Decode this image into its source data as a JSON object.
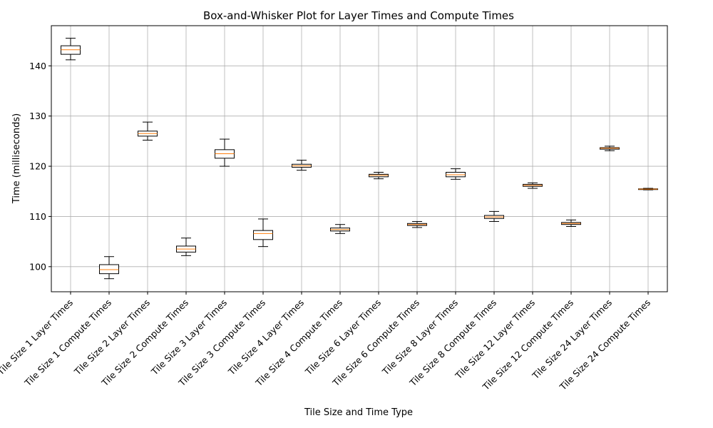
{
  "chart_data": {
    "type": "box",
    "title": "Box-and-Whisker Plot for Layer Times and Compute Times",
    "xlabel": "Tile Size and Time Type",
    "ylabel": "Time (milliseconds)",
    "ylim": [
      95,
      148
    ],
    "yticks": [
      100,
      110,
      120,
      130,
      140
    ],
    "grid": true,
    "colors": {
      "box": "#000000",
      "median": "#ff7f0e",
      "grid": "#b0b0b0"
    },
    "categories": [
      "Tile Size 1 Layer Times",
      "Tile Size 1 Compute Times",
      "Tile Size 2 Layer Times",
      "Tile Size 2 Compute Times",
      "Tile Size 3 Layer Times",
      "Tile Size 3 Compute Times",
      "Tile Size 4 Layer Times",
      "Tile Size 4 Compute Times",
      "Tile Size 6 Layer Times",
      "Tile Size 6 Compute Times",
      "Tile Size 8 Layer Times",
      "Tile Size 8 Compute Times",
      "Tile Size 12 Layer Times",
      "Tile Size 12 Compute Times",
      "Tile Size 24 Layer Times",
      "Tile Size 24 Compute Times"
    ],
    "boxes": [
      {
        "min": 141.2,
        "q1": 142.3,
        "median": 143.2,
        "q3": 144.0,
        "max": 145.5
      },
      {
        "min": 97.6,
        "q1": 98.6,
        "median": 99.4,
        "q3": 100.4,
        "max": 102.0
      },
      {
        "min": 125.2,
        "q1": 126.0,
        "median": 126.5,
        "q3": 127.0,
        "max": 128.8
      },
      {
        "min": 102.2,
        "q1": 102.9,
        "median": 103.5,
        "q3": 104.1,
        "max": 105.7
      },
      {
        "min": 120.0,
        "q1": 121.6,
        "median": 122.5,
        "q3": 123.3,
        "max": 125.4
      },
      {
        "min": 104.0,
        "q1": 105.4,
        "median": 106.6,
        "q3": 107.2,
        "max": 109.5
      },
      {
        "min": 119.2,
        "q1": 119.8,
        "median": 120.1,
        "q3": 120.4,
        "max": 121.2
      },
      {
        "min": 106.6,
        "q1": 107.1,
        "median": 107.4,
        "q3": 107.7,
        "max": 108.4
      },
      {
        "min": 117.5,
        "q1": 117.9,
        "median": 118.2,
        "q3": 118.4,
        "max": 118.8
      },
      {
        "min": 107.8,
        "q1": 108.2,
        "median": 108.4,
        "q3": 108.6,
        "max": 109.0
      },
      {
        "min": 117.4,
        "q1": 117.9,
        "median": 118.3,
        "q3": 118.8,
        "max": 119.5
      },
      {
        "min": 109.0,
        "q1": 109.6,
        "median": 109.9,
        "q3": 110.2,
        "max": 111.0
      },
      {
        "min": 115.6,
        "q1": 116.0,
        "median": 116.2,
        "q3": 116.4,
        "max": 116.7
      },
      {
        "min": 108.0,
        "q1": 108.4,
        "median": 108.6,
        "q3": 108.8,
        "max": 109.3
      },
      {
        "min": 123.1,
        "q1": 123.4,
        "median": 123.6,
        "q3": 123.7,
        "max": 124.0
      },
      {
        "min": 115.3,
        "q1": 115.4,
        "median": 115.45,
        "q3": 115.5,
        "max": 115.6
      }
    ]
  }
}
